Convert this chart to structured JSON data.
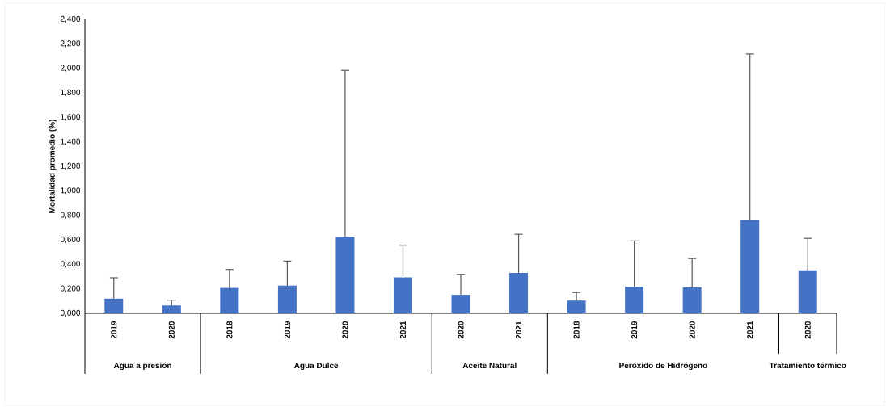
{
  "chart_data": {
    "type": "bar",
    "ylabel": "Mortalidad promedio (%)",
    "categories": [
      "2019",
      "2020",
      "2018",
      "2019",
      "2020",
      "2021",
      "2020",
      "2021",
      "2018",
      "2019",
      "2020",
      "2021",
      "2020"
    ],
    "values": [
      0.12,
      0.064,
      0.207,
      0.226,
      0.624,
      0.294,
      0.151,
      0.33,
      0.104,
      0.217,
      0.212,
      0.763,
      0.351
    ],
    "errors": [
      [
        0.12,
        0.29
      ],
      [
        0.064,
        0.108
      ],
      [
        0.207,
        0.358
      ],
      [
        0.226,
        0.426
      ],
      [
        0.624,
        1.983
      ],
      [
        0.294,
        0.556
      ],
      [
        0.151,
        0.318
      ],
      [
        0.33,
        0.645
      ],
      [
        0.104,
        0.17
      ],
      [
        0.217,
        0.591
      ],
      [
        0.212,
        0.447
      ],
      [
        0.763,
        2.117
      ],
      [
        0.351,
        0.612
      ]
    ],
    "color": "#4472c4",
    "ylim": [
      0,
      2.4
    ],
    "yticks": [
      {
        "value": 0,
        "label": "0,000"
      },
      {
        "value": 0.2,
        "label": "0,200"
      },
      {
        "value": 0.4,
        "label": "0,400"
      },
      {
        "value": 0.6,
        "label": "0,600"
      },
      {
        "value": 0.8,
        "label": "0,800"
      },
      {
        "value": 1.0,
        "label": "1,000"
      },
      {
        "value": 1.2,
        "label": "1,200"
      },
      {
        "value": 1.4,
        "label": "1,400"
      },
      {
        "value": 1.6,
        "label": "1,600"
      },
      {
        "value": 1.8,
        "label": "1,800"
      },
      {
        "value": 2.0,
        "label": "2,000"
      },
      {
        "value": 2.2,
        "label": "2,200"
      },
      {
        "value": 2.4,
        "label": "2,400"
      }
    ],
    "annotations": [
      "Agua a presión",
      "Agua Dulce",
      "Aceite Natural",
      "Peróxido de Hidrógeno",
      "Tratamiento térmico"
    ],
    "grid": false
  }
}
